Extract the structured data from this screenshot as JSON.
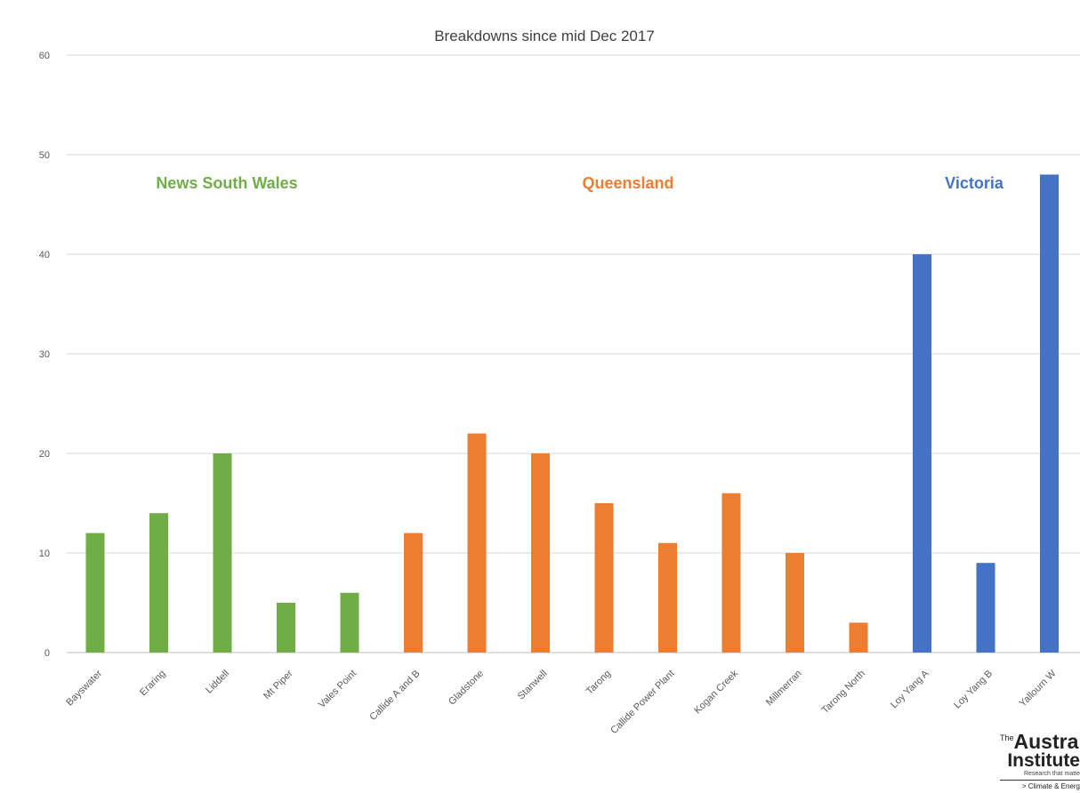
{
  "chart_data": {
    "type": "bar",
    "title": "Breakdowns since mid Dec 2017",
    "xlabel": "",
    "ylabel": "",
    "ylim": [
      0,
      60
    ],
    "yticks": [
      0,
      10,
      20,
      30,
      40,
      50,
      60
    ],
    "grid": true,
    "categories": [
      "Bayswater",
      "Eraring",
      "Liddell",
      "Mt Piper",
      "Vales Point",
      "Callide A and B",
      "Gladstone",
      "Stanwell",
      "Tarong",
      "Callide Power Plant",
      "Kogan Creek",
      "Millmerran",
      "Tarong North",
      "Loy Yang A",
      "Loy Yang B",
      "Yallourn W"
    ],
    "values": [
      12,
      14,
      20,
      5,
      6,
      12,
      22,
      20,
      15,
      11,
      16,
      10,
      3,
      40,
      9,
      48
    ],
    "regions": [
      {
        "name": "News South Wales",
        "color": "#70AD47",
        "count": 5
      },
      {
        "name": "Queensland",
        "color": "#ED7D31",
        "count": 8
      },
      {
        "name": "Victoria",
        "color": "#4472C4",
        "count": 3
      }
    ]
  },
  "logo": {
    "line1_prefix": "The",
    "line1": "Australia",
    "line2": "Institute",
    "tagline": "Research that matte",
    "program": "> Climate & Energ"
  }
}
